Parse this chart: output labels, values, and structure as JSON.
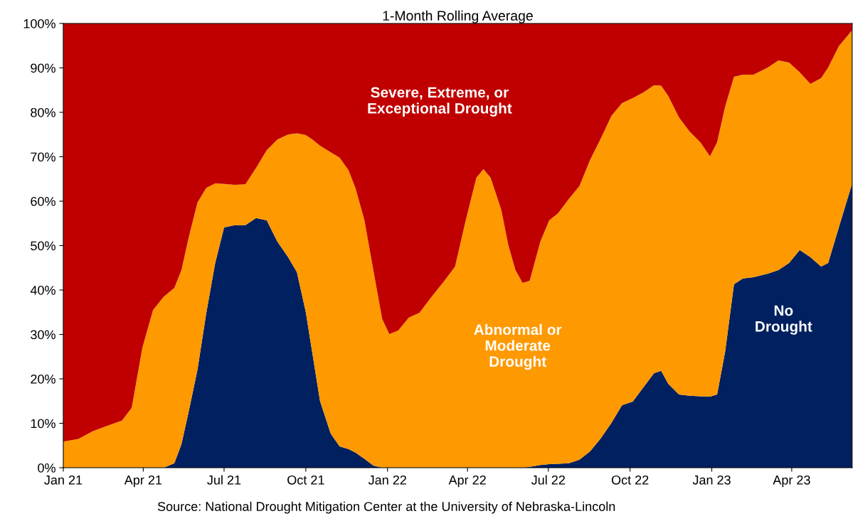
{
  "chart_data": {
    "type": "area",
    "stacked": true,
    "title": "1-Month Rolling Average",
    "annotations": [
      "Source: National Drought Mitigation Center at the University of Nebraska-Lincoln"
    ],
    "x": [
      "2021-01-01",
      "2021-01-18",
      "2021-02-03",
      "2021-02-19",
      "2021-03-08",
      "2021-03-19",
      "2021-03-31",
      "2021-04-12",
      "2021-04-24",
      "2021-05-06",
      "2021-05-14",
      "2021-05-22",
      "2021-06-01",
      "2021-06-11",
      "2021-06-21",
      "2021-07-01",
      "2021-07-13",
      "2021-07-25",
      "2021-08-06",
      "2021-08-18",
      "2021-08-30",
      "2021-09-11",
      "2021-09-21",
      "2021-10-01",
      "2021-10-09",
      "2021-10-17",
      "2021-10-29",
      "2021-11-08",
      "2021-11-18",
      "2021-11-26",
      "2021-12-06",
      "2021-12-16",
      "2021-12-26",
      "2022-01-03",
      "2022-01-13",
      "2022-01-25",
      "2022-02-06",
      "2022-02-18",
      "2022-03-06",
      "2022-03-18",
      "2022-03-30",
      "2022-04-11",
      "2022-04-19",
      "2022-04-27",
      "2022-05-09",
      "2022-05-17",
      "2022-05-25",
      "2022-06-02",
      "2022-06-10",
      "2022-06-22",
      "2022-07-02",
      "2022-07-12",
      "2022-07-24",
      "2022-08-05",
      "2022-08-17",
      "2022-08-29",
      "2022-09-10",
      "2022-09-22",
      "2022-10-04",
      "2022-10-16",
      "2022-10-28",
      "2022-11-05",
      "2022-11-13",
      "2022-11-25",
      "2022-12-07",
      "2022-12-19",
      "2022-12-30",
      "2023-01-07",
      "2023-01-16",
      "2023-01-26",
      "2023-02-05",
      "2023-02-17",
      "2023-03-05",
      "2023-03-17",
      "2023-03-29",
      "2023-04-10",
      "2023-04-22",
      "2023-05-04",
      "2023-05-12",
      "2023-05-24",
      "2023-06-08"
    ],
    "series": [
      {
        "name": "No\nDrought",
        "color": "#002060",
        "values": [
          0,
          0,
          0,
          0,
          0,
          0,
          0,
          0,
          0,
          1,
          5.3,
          12.5,
          22,
          34.9,
          46.1,
          54.1,
          54.6,
          54.6,
          56.2,
          55.7,
          50.9,
          47.4,
          44,
          35,
          25,
          15,
          7.7,
          4.8,
          4.2,
          3.4,
          2,
          0.5,
          0,
          0,
          0,
          0,
          0,
          0,
          0,
          0,
          0,
          0,
          0,
          0,
          0,
          0,
          0,
          0,
          0.2,
          0.6,
          0.8,
          0.9,
          1,
          1.8,
          3.7,
          6.6,
          10.1,
          14.1,
          14.9,
          18.1,
          21.3,
          21.8,
          18.9,
          16.5,
          16.2,
          16.1,
          16,
          16.5,
          26.1,
          41.3,
          42.6,
          42.9,
          43.7,
          44.5,
          46.1,
          49,
          47.4,
          45.3,
          46.1,
          54.1,
          64
        ]
      },
      {
        "name": "Abnormal or\nModerate\nDrought",
        "color": "#ff9900",
        "values": [
          5.9,
          6.5,
          8.2,
          9.4,
          10.6,
          13.5,
          27,
          35.5,
          38.5,
          39.5,
          39.2,
          39.2,
          37.7,
          28.1,
          17.9,
          9.8,
          9.1,
          9.2,
          11.3,
          15.8,
          23,
          27.6,
          31.3,
          39.9,
          48.8,
          57.5,
          63.3,
          65,
          62.8,
          59.5,
          53.7,
          44,
          33.5,
          30.1,
          30.9,
          33.8,
          34.9,
          38.1,
          42.1,
          45.3,
          55.7,
          65.3,
          67.2,
          65.3,
          58.1,
          50.1,
          44.5,
          41.6,
          41.9,
          50.3,
          54.9,
          56.4,
          59.5,
          61.6,
          65.6,
          67.5,
          69.1,
          68,
          68.3,
          66.4,
          64.8,
          64.2,
          64.8,
          62.4,
          59.5,
          57.2,
          54.1,
          56.8,
          55.2,
          46.7,
          45.9,
          45.6,
          46.4,
          47.2,
          45.1,
          40,
          39,
          42.4,
          44,
          40.8,
          34.5
        ]
      },
      {
        "name": "Severe, Extreme, or\nExceptional Drought",
        "color": "#c00000",
        "values": [
          94.1,
          93.5,
          91.8,
          90.6,
          89.4,
          86.5,
          73,
          64.5,
          61.5,
          59.5,
          55.5,
          48.3,
          40.3,
          37,
          36,
          36.1,
          36.3,
          36.2,
          32.5,
          28.5,
          26.1,
          25,
          24.7,
          25.1,
          26.2,
          27.5,
          29,
          30.2,
          33,
          37.1,
          44.3,
          55.5,
          66.5,
          69.9,
          69.1,
          66.2,
          65.1,
          61.9,
          57.9,
          54.7,
          44.3,
          34.7,
          32.8,
          34.7,
          41.9,
          49.9,
          55.5,
          58.4,
          57.9,
          49.1,
          44.3,
          42.7,
          39.5,
          36.6,
          30.7,
          25.9,
          20.8,
          17.9,
          16.8,
          15.5,
          13.9,
          14,
          16.3,
          21.1,
          24.3,
          26.7,
          29.9,
          26.7,
          18.7,
          12,
          11.5,
          11.5,
          9.9,
          8.3,
          8.8,
          11,
          13.6,
          12.3,
          9.9,
          5.1,
          1.5
        ]
      }
    ],
    "xlim": [
      "2021-01-01",
      "2023-06-08"
    ],
    "xticks": [
      {
        "value": "2021-01-01",
        "label": "Jan 21"
      },
      {
        "value": "2021-04-01",
        "label": "Apr 21"
      },
      {
        "value": "2021-07-01",
        "label": "Jul 21"
      },
      {
        "value": "2021-10-01",
        "label": "Oct 21"
      },
      {
        "value": "2022-01-01",
        "label": "Jan 22"
      },
      {
        "value": "2022-04-01",
        "label": "Apr 22"
      },
      {
        "value": "2022-07-01",
        "label": "Jul 22"
      },
      {
        "value": "2022-10-01",
        "label": "Oct 22"
      },
      {
        "value": "2023-01-01",
        "label": "Jan 23"
      },
      {
        "value": "2023-04-01",
        "label": "Apr 23"
      }
    ],
    "ylim": [
      0,
      100
    ],
    "yticks": [
      {
        "value": 0,
        "label": "0%"
      },
      {
        "value": 10,
        "label": "10%"
      },
      {
        "value": 20,
        "label": "20%"
      },
      {
        "value": 30,
        "label": "30%"
      },
      {
        "value": 40,
        "label": "40%"
      },
      {
        "value": 50,
        "label": "50%"
      },
      {
        "value": 60,
        "label": "60%"
      },
      {
        "value": 70,
        "label": "70%"
      },
      {
        "value": 80,
        "label": "80%"
      },
      {
        "value": 90,
        "label": "90%"
      },
      {
        "value": 100,
        "label": "100%"
      }
    ],
    "grid": false,
    "legend": false
  }
}
